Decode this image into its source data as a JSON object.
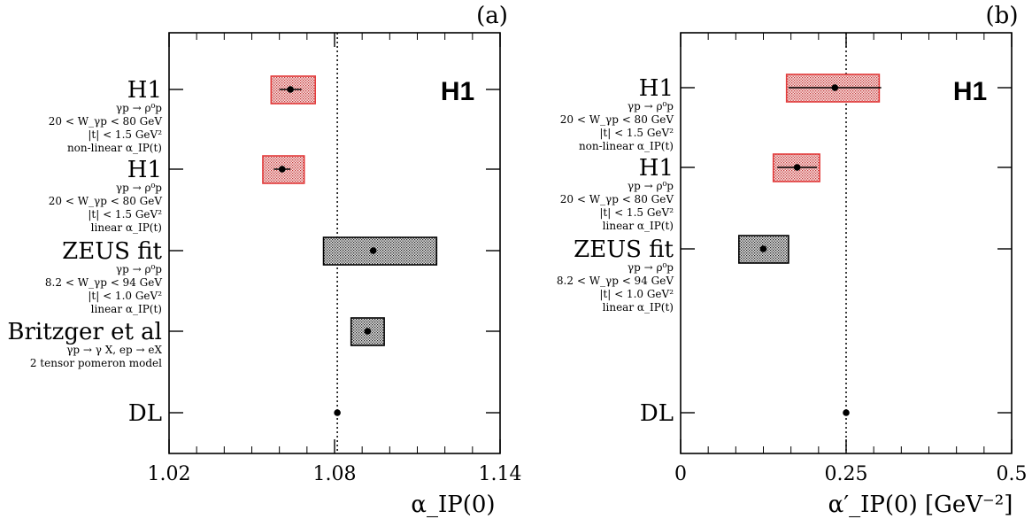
{
  "chart_data": [
    {
      "type": "scatter",
      "panel_label": "(a)",
      "xlabel": "α_IP(0)",
      "xlim": [
        1.02,
        1.14
      ],
      "x_ticks": [
        1.02,
        1.08,
        1.14
      ],
      "x_tick_labels": [
        "1.02",
        "1.08",
        "1.14"
      ],
      "reference_line": 1.081,
      "brand": "H1",
      "points": [
        {
          "label": "H1",
          "sub": [
            "γp → ρ⁰p",
            "20 < W_γp < 80 GeV",
            "|t| < 1.5 GeV²",
            "non-linear α_IP(t)"
          ],
          "value": 1.064,
          "stat_err": 0.004,
          "syst_lo": 1.057,
          "syst_hi": 1.073,
          "color": "red"
        },
        {
          "label": "H1",
          "sub": [
            "γp → ρ⁰p",
            "20 < W_γp < 80 GeV",
            "|t| < 1.5 GeV²",
            "linear α_IP(t)"
          ],
          "value": 1.061,
          "stat_err": 0.003,
          "syst_lo": 1.054,
          "syst_hi": 1.069,
          "color": "red"
        },
        {
          "label": "ZEUS fit",
          "sub": [
            "γp → ρ⁰p",
            "8.2 < W_γp < 94 GeV",
            "|t| < 1.0 GeV²",
            "linear α_IP(t)"
          ],
          "value": 1.094,
          "stat_err": 0,
          "syst_lo": 1.076,
          "syst_hi": 1.117,
          "color": "black"
        },
        {
          "label": "Britzger et al",
          "sub": [
            "γp → γ X, ep → eX",
            "2 tensor pomeron model"
          ],
          "value": 1.092,
          "stat_err": 0,
          "syst_lo": 1.086,
          "syst_hi": 1.098,
          "color": "black"
        },
        {
          "label": "DL",
          "sub": [],
          "value": 1.081,
          "stat_err": 0,
          "color": "black"
        }
      ]
    },
    {
      "type": "scatter",
      "panel_label": "(b)",
      "xlabel": "α′_IP(0)  [GeV⁻²]",
      "xlim": [
        0,
        0.5
      ],
      "x_ticks": [
        0,
        0.25,
        0.5
      ],
      "x_tick_labels": [
        "0",
        "0.25",
        "0.5"
      ],
      "reference_line": 0.25,
      "brand": "H1",
      "points": [
        {
          "label": "H1",
          "sub": [
            "γp → ρ⁰p",
            "20 < W_γp < 80 GeV",
            "|t| < 1.5 GeV²",
            "non-linear α_IP(t)"
          ],
          "value": 0.233,
          "stat_err": 0.07,
          "syst_lo": 0.16,
          "syst_hi": 0.3,
          "color": "red"
        },
        {
          "label": "H1",
          "sub": [
            "γp → ρ⁰p",
            "20 < W_γp < 80 GeV",
            "|t| < 1.5 GeV²",
            "linear α_IP(t)"
          ],
          "value": 0.176,
          "stat_err": 0.03,
          "syst_lo": 0.14,
          "syst_hi": 0.21,
          "color": "red"
        },
        {
          "label": "ZEUS fit",
          "sub": [
            "γp → ρ⁰p",
            "8.2 < W_γp < 94 GeV",
            "|t| < 1.0 GeV²",
            "linear α_IP(t)"
          ],
          "value": 0.125,
          "stat_err": 0,
          "syst_lo": 0.088,
          "syst_hi": 0.163,
          "color": "black"
        },
        {
          "label": "DL",
          "sub": [],
          "value": 0.25,
          "stat_err": 0,
          "color": "black"
        }
      ]
    }
  ]
}
